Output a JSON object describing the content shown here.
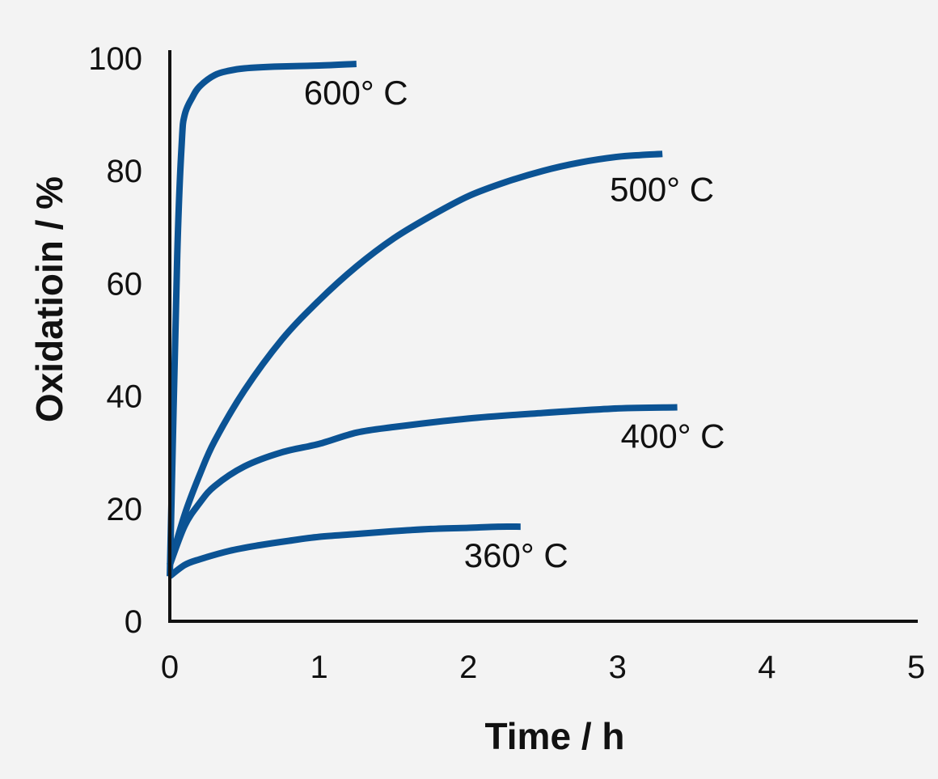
{
  "chart_data": {
    "type": "line",
    "title": "",
    "xlabel": "Time / h",
    "ylabel": "Oxidatioin / %",
    "xlim": [
      0,
      5
    ],
    "ylim": [
      0,
      100
    ],
    "x_ticks": [
      "0",
      "1",
      "2",
      "3",
      "4",
      "5"
    ],
    "y_ticks": [
      "0",
      "20",
      "40",
      "60",
      "80",
      "100"
    ],
    "grid": false,
    "legend": "none",
    "line_color": "#0b5394",
    "series": [
      {
        "name": "600° C",
        "x": [
          0,
          0.05,
          0.08,
          0.1,
          0.15,
          0.2,
          0.3,
          0.4,
          0.5,
          0.7,
          1.0,
          1.25
        ],
        "y": [
          8,
          65,
          85,
          90,
          93,
          95,
          97,
          97.8,
          98.2,
          98.5,
          98.7,
          99
        ]
      },
      {
        "name": "500° C",
        "x": [
          0,
          0.1,
          0.2,
          0.3,
          0.5,
          0.75,
          1.0,
          1.25,
          1.5,
          1.75,
          2.0,
          2.25,
          2.5,
          2.75,
          3.0,
          3.15,
          3.3
        ],
        "y": [
          10,
          19,
          26,
          32,
          41,
          50,
          57,
          63,
          68,
          72,
          75.5,
          78,
          80,
          81.5,
          82.5,
          82.8,
          83
        ]
      },
      {
        "name": "400° C",
        "x": [
          0,
          0.1,
          0.2,
          0.3,
          0.5,
          0.75,
          1.0,
          1.25,
          1.5,
          2.0,
          2.5,
          3.0,
          3.4
        ],
        "y": [
          10,
          17,
          21,
          24,
          27.5,
          30,
          31.5,
          33.5,
          34.5,
          36,
          37,
          37.8,
          38
        ]
      },
      {
        "name": "360° C",
        "x": [
          0,
          0.1,
          0.2,
          0.4,
          0.6,
          0.8,
          1.0,
          1.25,
          1.5,
          1.75,
          2.0,
          2.2,
          2.35
        ],
        "y": [
          8,
          10,
          11,
          12.5,
          13.5,
          14.3,
          15,
          15.5,
          16,
          16.4,
          16.6,
          16.8,
          16.8
        ]
      }
    ]
  }
}
